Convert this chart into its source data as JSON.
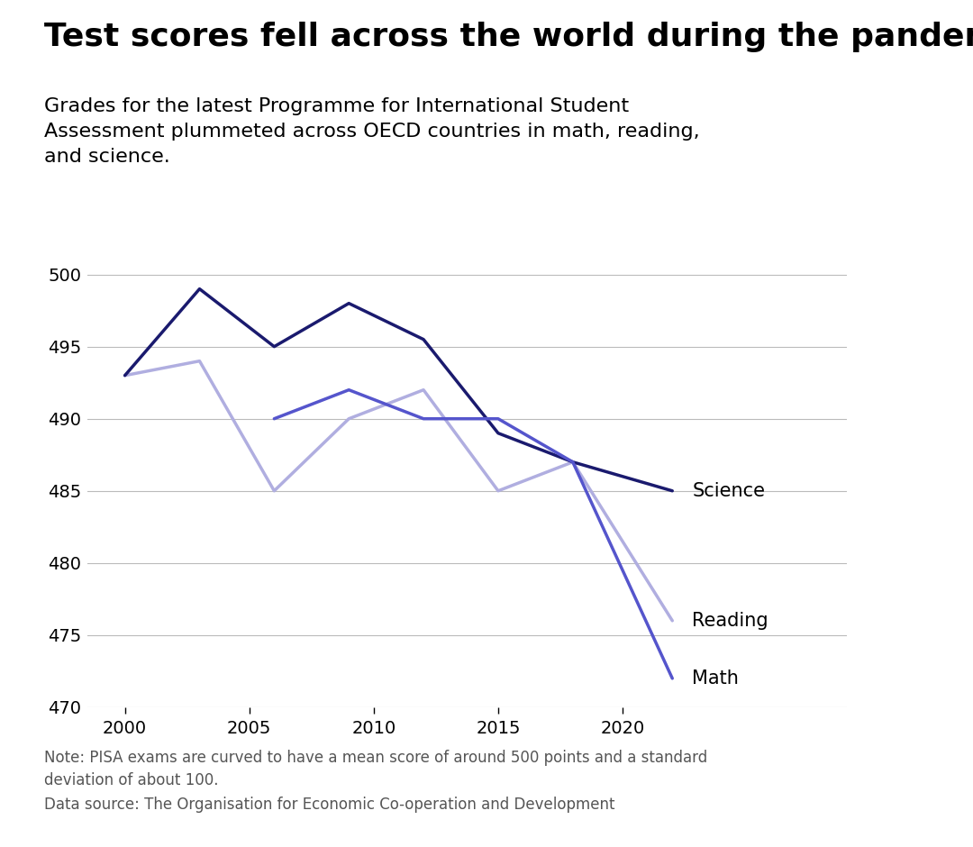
{
  "title": "Test scores fell across the world during the pandemic",
  "subtitle": "Grades for the latest Programme for International Student\nAssessment plummeted across OECD countries in math, reading,\nand science.",
  "note": "Note: PISA exams are curved to have a mean score of around 500 points and a standard\ndeviation of about 100.",
  "source": "Data source: The Organisation for Economic Co-operation and Development",
  "years": [
    2000,
    2003,
    2006,
    2009,
    2012,
    2015,
    2018,
    2022
  ],
  "science": [
    493,
    499,
    495,
    498,
    495.5,
    489,
    487,
    485
  ],
  "reading": [
    493,
    494,
    485,
    490,
    492,
    485,
    487,
    476
  ],
  "math": [
    null,
    null,
    490,
    492,
    490,
    490,
    487,
    472
  ],
  "science_color": "#1a1a6e",
  "reading_color": "#b0aee0",
  "math_color": "#5555cc",
  "ylim": [
    470,
    502
  ],
  "yticks": [
    470,
    475,
    480,
    485,
    490,
    495,
    500
  ],
  "xticks": [
    2000,
    2005,
    2010,
    2015,
    2020
  ],
  "background_color": "#ffffff",
  "title_fontsize": 26,
  "subtitle_fontsize": 16,
  "note_fontsize": 12,
  "label_fontsize": 15
}
